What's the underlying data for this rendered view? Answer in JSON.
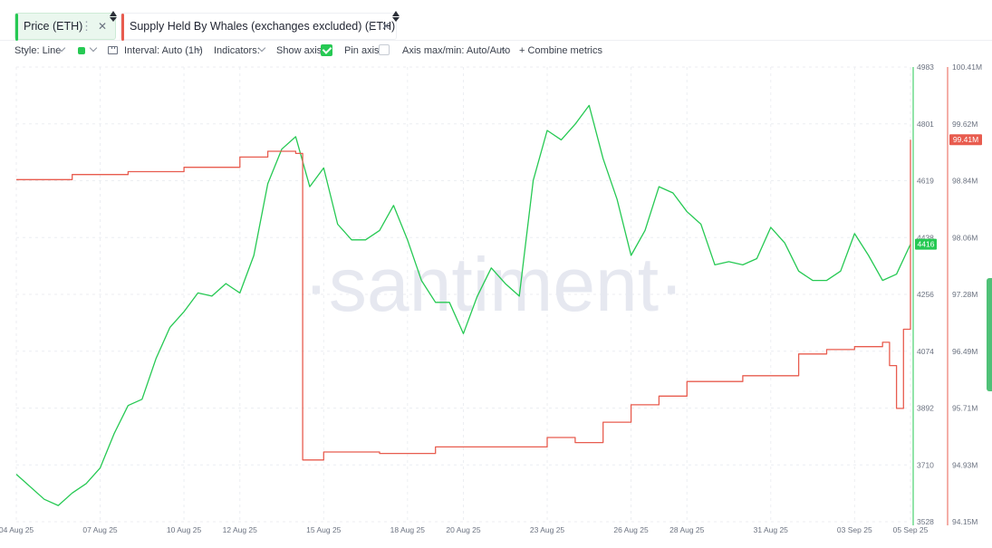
{
  "tabs": [
    {
      "label": "Price (ETH)",
      "color": "#26c953"
    },
    {
      "label": "Supply Held By Whales (exchanges excluded) (ETH)",
      "color": "#e85c4f"
    }
  ],
  "toolbar": {
    "style": "Style: Line",
    "interval": "Interval: Auto (1h)",
    "indicators": "Indicators:",
    "show_axis": "Show axis",
    "pin_axis": "Pin axis",
    "axis_minmax": "Axis max/min: Auto/Auto",
    "combine": "+ Combine metrics"
  },
  "watermark": "·santiment·",
  "chart_data": {
    "type": "line",
    "x_axis": {
      "ticks": [
        "04 Aug 25",
        "07 Aug 25",
        "10 Aug 25",
        "12 Aug 25",
        "15 Aug 25",
        "18 Aug 25",
        "20 Aug 25",
        "23 Aug 25",
        "26 Aug 25",
        "28 Aug 25",
        "31 Aug 25",
        "03 Sep 25",
        "05 Sep 25"
      ],
      "start": "2025-08-04",
      "end": "2025-09-05"
    },
    "price_axis": {
      "ticks": [
        4983,
        4801,
        4619,
        4438,
        4256,
        4074,
        3892,
        3710,
        3528
      ],
      "range": [
        3528,
        4983
      ],
      "current": "4416",
      "color": "#26c953"
    },
    "whale_axis": {
      "ticks": [
        "100.41M",
        "99.62M",
        "98.84M",
        "98.06M",
        "97.28M",
        "96.49M",
        "95.71M",
        "94.93M",
        "94.15M"
      ],
      "range": [
        94.15,
        100.41
      ],
      "current": "99.41M",
      "color": "#e85c4f"
    },
    "series": [
      {
        "name": "Price (ETH)",
        "axis": "price",
        "color": "#26c953",
        "points": [
          [
            "2025-08-04",
            3680
          ],
          [
            "2025-08-05",
            3600
          ],
          [
            "2025-08-05 12:00",
            3580
          ],
          [
            "2025-08-06",
            3620
          ],
          [
            "2025-08-06 12:00",
            3650
          ],
          [
            "2025-08-07",
            3700
          ],
          [
            "2025-08-07 12:00",
            3810
          ],
          [
            "2025-08-08",
            3900
          ],
          [
            "2025-08-08 12:00",
            3920
          ],
          [
            "2025-08-09",
            4050
          ],
          [
            "2025-08-09 12:00",
            4150
          ],
          [
            "2025-08-10",
            4200
          ],
          [
            "2025-08-10 12:00",
            4260
          ],
          [
            "2025-08-11",
            4250
          ],
          [
            "2025-08-11 12:00",
            4290
          ],
          [
            "2025-08-12",
            4260
          ],
          [
            "2025-08-12 12:00",
            4380
          ],
          [
            "2025-08-13",
            4610
          ],
          [
            "2025-08-13 12:00",
            4720
          ],
          [
            "2025-08-14",
            4760
          ],
          [
            "2025-08-14 12:00",
            4600
          ],
          [
            "2025-08-15",
            4660
          ],
          [
            "2025-08-15 12:00",
            4480
          ],
          [
            "2025-08-16",
            4430
          ],
          [
            "2025-08-16 12:00",
            4430
          ],
          [
            "2025-08-17",
            4460
          ],
          [
            "2025-08-17 12:00",
            4540
          ],
          [
            "2025-08-18",
            4430
          ],
          [
            "2025-08-18 12:00",
            4300
          ],
          [
            "2025-08-19",
            4230
          ],
          [
            "2025-08-19 12:00",
            4230
          ],
          [
            "2025-08-20",
            4130
          ],
          [
            "2025-08-20 12:00",
            4250
          ],
          [
            "2025-08-21",
            4340
          ],
          [
            "2025-08-21 12:00",
            4290
          ],
          [
            "2025-08-22",
            4250
          ],
          [
            "2025-08-22 12:00",
            4620
          ],
          [
            "2025-08-23",
            4780
          ],
          [
            "2025-08-23 12:00",
            4750
          ],
          [
            "2025-08-24",
            4800
          ],
          [
            "2025-08-24 12:00",
            4860
          ],
          [
            "2025-08-25",
            4690
          ],
          [
            "2025-08-25 12:00",
            4560
          ],
          [
            "2025-08-26",
            4380
          ],
          [
            "2025-08-26 12:00",
            4460
          ],
          [
            "2025-08-27",
            4600
          ],
          [
            "2025-08-27 12:00",
            4580
          ],
          [
            "2025-08-28",
            4520
          ],
          [
            "2025-08-28 12:00",
            4480
          ],
          [
            "2025-08-29",
            4350
          ],
          [
            "2025-08-29 12:00",
            4360
          ],
          [
            "2025-08-30",
            4350
          ],
          [
            "2025-08-30 12:00",
            4370
          ],
          [
            "2025-08-31",
            4470
          ],
          [
            "2025-08-31 12:00",
            4420
          ],
          [
            "2025-09-01",
            4330
          ],
          [
            "2025-09-01 12:00",
            4300
          ],
          [
            "2025-09-02",
            4300
          ],
          [
            "2025-09-02 12:00",
            4330
          ],
          [
            "2025-09-03",
            4450
          ],
          [
            "2025-09-03 12:00",
            4380
          ],
          [
            "2025-09-04",
            4300
          ],
          [
            "2025-09-04 12:00",
            4320
          ],
          [
            "2025-09-05",
            4416
          ]
        ]
      },
      {
        "name": "Supply Held By Whales (exchanges excluded) (ETH)",
        "axis": "whales",
        "color": "#e85c4f",
        "points": [
          [
            "2025-08-04",
            98.86
          ],
          [
            "2025-08-06",
            98.93
          ],
          [
            "2025-08-08",
            98.97
          ],
          [
            "2025-08-10",
            99.03
          ],
          [
            "2025-08-12",
            99.17
          ],
          [
            "2025-08-13",
            99.25
          ],
          [
            "2025-08-14",
            99.22
          ],
          [
            "2025-08-14 06:00",
            95.0
          ],
          [
            "2025-08-15",
            95.11
          ],
          [
            "2025-08-17",
            95.09
          ],
          [
            "2025-08-19",
            95.18
          ],
          [
            "2025-08-21",
            95.18
          ],
          [
            "2025-08-23",
            95.31
          ],
          [
            "2025-08-24",
            95.24
          ],
          [
            "2025-08-25",
            95.52
          ],
          [
            "2025-08-26",
            95.76
          ],
          [
            "2025-08-27",
            95.88
          ],
          [
            "2025-08-28",
            96.08
          ],
          [
            "2025-08-30",
            96.16
          ],
          [
            "2025-09-01",
            96.46
          ],
          [
            "2025-09-02",
            96.52
          ],
          [
            "2025-09-03",
            96.56
          ],
          [
            "2025-09-04",
            96.62
          ],
          [
            "2025-09-04 06:00",
            96.3
          ],
          [
            "2025-09-04 12:00",
            95.71
          ],
          [
            "2025-09-04 18:00",
            96.8
          ],
          [
            "2025-09-05",
            99.41
          ]
        ]
      }
    ]
  }
}
